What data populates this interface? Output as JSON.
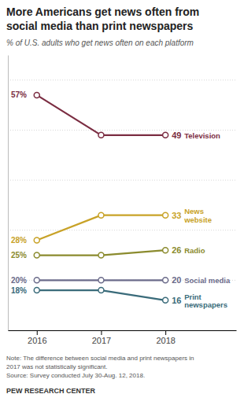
{
  "chart_data": {
    "type": "line",
    "title": "More Americans get news often from\nsocial media than print newspapers",
    "subtitle": "% of U.S. adults who get news often on each platform",
    "x": [
      2016,
      2017,
      2018
    ],
    "xlim": [
      2015.55,
      2019.1
    ],
    "xticks": [
      2016,
      2017,
      2018
    ],
    "ylim": [
      10,
      65
    ],
    "yticks": [
      20,
      30,
      40,
      50,
      60
    ],
    "grid": true,
    "tick_labels": "x",
    "data_labels": true,
    "marker": "circle",
    "series": [
      {
        "name": "Television",
        "color": "#7b2d42",
        "values": [
          57,
          49,
          49
        ],
        "value_labels": [
          "57%",
          null,
          "49"
        ]
      },
      {
        "name": "News\nwebsite",
        "color": "#c8a227",
        "values": [
          28,
          33,
          33
        ],
        "value_labels": [
          "28%",
          null,
          "33"
        ]
      },
      {
        "name": "Radio",
        "color": "#8b8b2e",
        "values": [
          25,
          25,
          26
        ],
        "value_labels": [
          "25%",
          null,
          "26"
        ]
      },
      {
        "name": "Social media",
        "color": "#6b6b8a",
        "values": [
          20,
          20,
          20
        ],
        "value_labels": [
          "20%",
          null,
          "20"
        ]
      },
      {
        "name": "Print\nnewspapers",
        "color": "#3a6b7a",
        "values": [
          18,
          18,
          16
        ],
        "value_labels": [
          "18%",
          null,
          "16"
        ]
      }
    ],
    "note": "Note: The difference between social media and print newspapers in\n2017 was not statistically significant.\nSource: Survey conducted July 30-Aug. 12, 2018.",
    "source": "PEW RESEARCH CENTER"
  }
}
